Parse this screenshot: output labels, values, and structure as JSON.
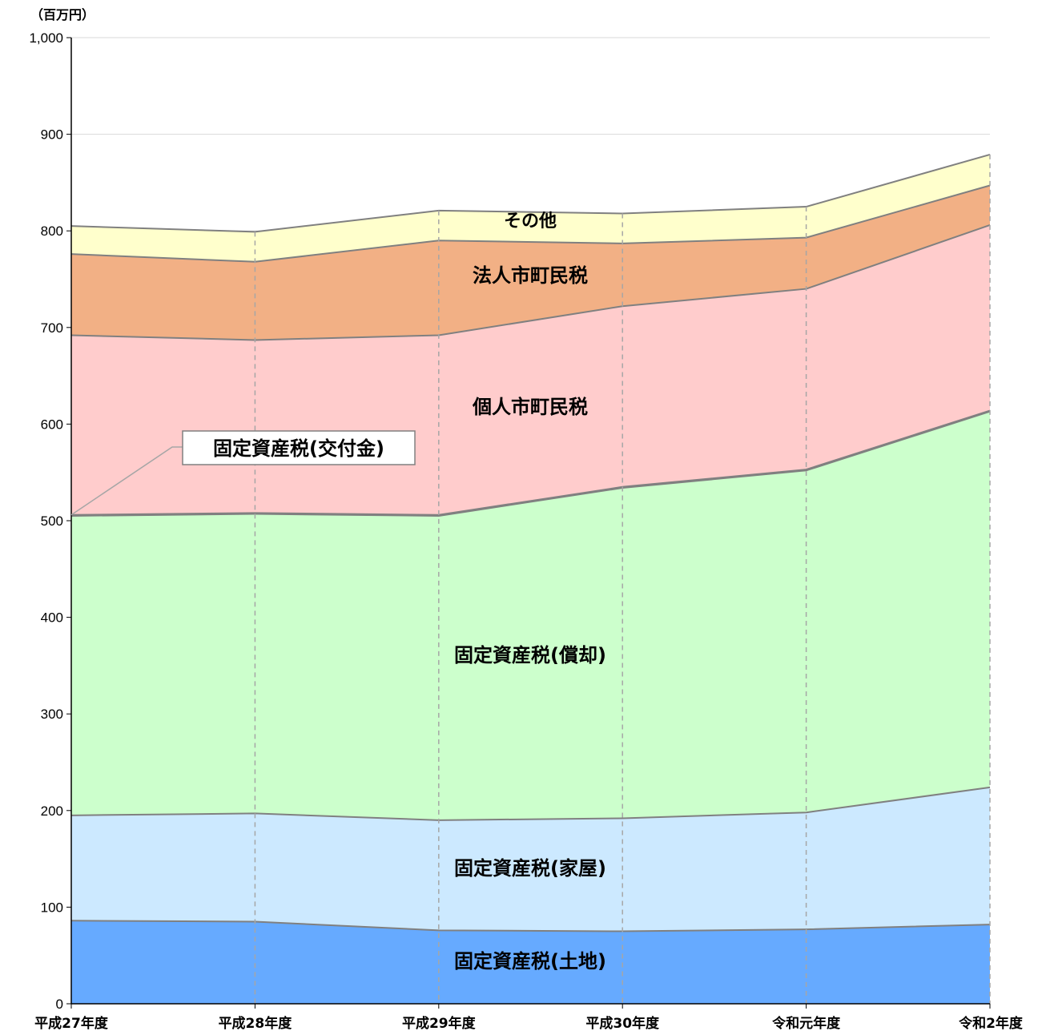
{
  "chart_data": {
    "type": "area",
    "stacked": true,
    "unit_label": "（百万円）",
    "categories": [
      "平成27年度",
      "平成28年度",
      "平成29年度",
      "平成30年度",
      "令和元年度",
      "令和2年度"
    ],
    "ylim": [
      0,
      1000
    ],
    "yticks": [
      0,
      100,
      200,
      300,
      400,
      500,
      600,
      700,
      800,
      900,
      1000
    ],
    "ytick_labels": [
      "0",
      "100",
      "200",
      "300",
      "400",
      "500",
      "600",
      "700",
      "800",
      "900",
      "1,000"
    ],
    "grid": true,
    "series": [
      {
        "name": "固定資産税（土地）",
        "values": [
          86,
          85,
          76,
          75,
          77,
          82
        ],
        "color": "#66aaff"
      },
      {
        "name": "固定資産税（家屋）",
        "values": [
          109,
          112,
          114,
          117,
          121,
          142
        ],
        "color": "#cce9ff"
      },
      {
        "name": "固定資産税（償却）",
        "values": [
          310,
          310,
          315,
          342,
          354,
          389
        ],
        "color": "#ccffcc"
      },
      {
        "name": "固定資産税（交付金）",
        "values": [
          1,
          1,
          1,
          1,
          1,
          1
        ],
        "color": "#b3e6b3"
      },
      {
        "name": "個人市町民税",
        "values": [
          186,
          179,
          186,
          187,
          187,
          192
        ],
        "color": "#ffcccc"
      },
      {
        "name": "法人市町民税",
        "values": [
          84,
          81,
          98,
          65,
          53,
          41
        ],
        "color": "#f2b085"
      },
      {
        "name": "その他",
        "values": [
          29,
          31,
          31,
          31,
          32,
          32
        ],
        "color": "#ffffcc"
      }
    ],
    "callout_label": "固定資産税(交付金)",
    "area_labels": [
      "固定資産税(土地)",
      "固定資産税(家屋)",
      "固定資産税(償却)",
      "個人市町民税",
      "法人市町民税",
      "その他"
    ]
  }
}
